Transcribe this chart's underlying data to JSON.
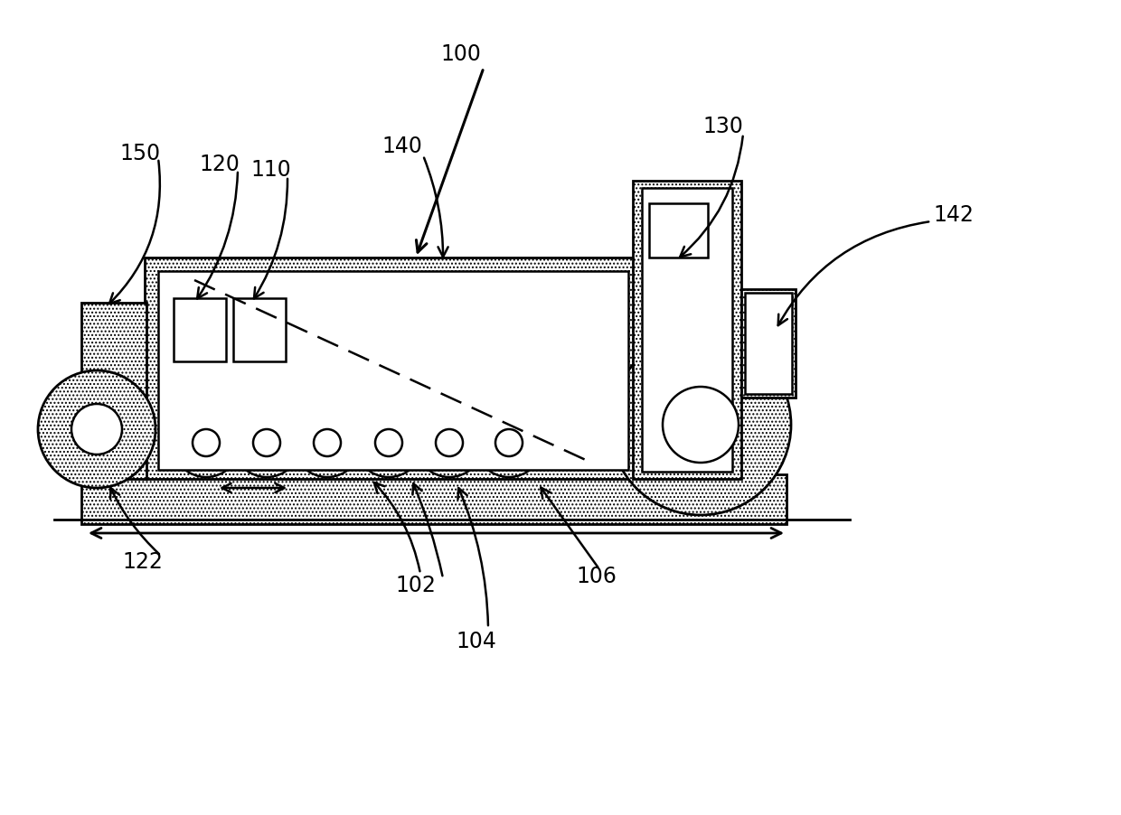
{
  "bg_color": "#ffffff",
  "line_color": "#000000",
  "fig_width": 12.4,
  "fig_height": 9.02,
  "fontsize": 17,
  "lw": 1.8,
  "lw_thick": 2.0
}
